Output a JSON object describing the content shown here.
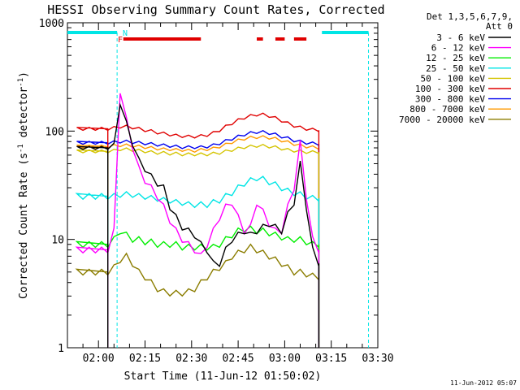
{
  "chart_data": {
    "type": "line",
    "title": "HESSI Observing Summary Count Rates, Corrected",
    "xlabel": "Start Time (11-Jun-12 01:50:02)",
    "ylabel": "Corrected Count Rate (s",
    "ylabel_sup1": "-1",
    "ylabel_mid": " detector",
    "ylabel_sup2": "-1",
    "ylabel_end": ")",
    "yscale": "log",
    "ylim": [
      1,
      1000
    ],
    "xlim": [
      "01:50:02",
      "03:30:00"
    ],
    "x_ticks": [
      "02:00",
      "02:15",
      "02:30",
      "02:45",
      "03:00",
      "03:15",
      "03:30"
    ],
    "x_tick_minutes": [
      10,
      25,
      40,
      55,
      70,
      85,
      100
    ],
    "y_ticks": [
      "1",
      "10",
      "100",
      "1000"
    ],
    "y_tick_values": [
      1,
      10,
      100,
      1000
    ],
    "legend_header": [
      "Det 1,3,5,6,7,9,",
      "Att 0"
    ],
    "legend_position": "right outside",
    "footer": "11-Jun-2012 05:07",
    "flags": [
      {
        "label": "N",
        "color": "#00e5e5",
        "time": "02:06"
      },
      {
        "label": "F",
        "color": "#e00000",
        "time": "02:06"
      }
    ],
    "attenuator_state_bars": {
      "color": "#00e5e5",
      "times": [
        [
          "01:50",
          "02:06"
        ],
        [
          "03:12",
          "03:27"
        ]
      ]
    },
    "flare_flag_bars": {
      "color": "#e00000",
      "times": [
        [
          "02:08",
          "02:33"
        ],
        [
          "02:51",
          "02:53"
        ],
        [
          "02:57",
          "03:00"
        ],
        [
          "03:03",
          "03:07"
        ]
      ]
    },
    "night_boundaries": [
      "02:06",
      "03:27"
    ],
    "data_gaps_at": [
      "02:03",
      "03:11"
    ],
    "x_minutes_from_0150": [
      3,
      5,
      7,
      9,
      11,
      13,
      15,
      17,
      19,
      21,
      23,
      25,
      27,
      29,
      31,
      33,
      35,
      37,
      39,
      41,
      43,
      45,
      47,
      49,
      51,
      53,
      55,
      57,
      59,
      61,
      63,
      65,
      67,
      69,
      71,
      73,
      75,
      77,
      79,
      81
    ],
    "series": [
      {
        "name": "3 - 6 keV",
        "color": "#000000",
        "values": [
          70,
          70,
          70,
          70,
          70,
          70,
          75,
          180,
          120,
          75,
          55,
          45,
          38,
          33,
          30,
          20,
          16,
          13,
          12,
          11,
          9,
          8,
          6,
          6,
          8,
          10,
          11,
          12,
          11,
          12,
          13,
          14,
          13,
          12,
          17,
          22,
          50,
          20,
          8,
          6
        ]
      },
      {
        "name": "6 - 12 keV",
        "color": "#ff00ff",
        "values": [
          8,
          8,
          8,
          8,
          8,
          8,
          12,
          230,
          130,
          70,
          45,
          35,
          30,
          25,
          20,
          15,
          12,
          10,
          9,
          8,
          7,
          9,
          12,
          16,
          20,
          22,
          16,
          12,
          13,
          22,
          18,
          14,
          12,
          12,
          20,
          30,
          80,
          25,
          10,
          8
        ]
      },
      {
        "name": "12 - 25 keV",
        "color": "#00ee00",
        "values": [
          9,
          9,
          9,
          9,
          9,
          9,
          10,
          12,
          11,
          10,
          10,
          9.5,
          9.5,
          9,
          9,
          9,
          9,
          8.5,
          8.5,
          8.5,
          8.5,
          8.5,
          8.5,
          9,
          10,
          11,
          12,
          12.5,
          12.5,
          12,
          12,
          11.5,
          11,
          10.5,
          10,
          10,
          10,
          9.5,
          9,
          9
        ]
      },
      {
        "name": "25 - 50 keV",
        "color": "#00e5e5",
        "values": [
          25,
          25,
          25,
          25,
          25,
          25,
          25,
          26,
          26,
          26,
          25,
          25,
          24,
          24,
          23,
          23,
          22,
          22,
          21,
          21,
          21,
          21,
          22,
          23,
          25,
          27,
          30,
          33,
          35,
          37,
          36,
          34,
          32,
          30,
          28,
          27,
          26,
          25,
          24,
          24
        ]
      },
      {
        "name": "50 - 100 keV",
        "color": "#d4c400",
        "values": [
          65,
          65,
          65,
          65,
          65,
          65,
          66,
          68,
          68,
          67,
          66,
          65,
          64,
          63,
          63,
          62,
          62,
          61,
          61,
          61,
          61,
          61,
          62,
          63,
          65,
          67,
          69,
          71,
          72,
          73,
          73,
          72,
          71,
          69,
          67,
          66,
          65,
          64,
          64,
          64
        ]
      },
      {
        "name": "100 - 300 keV",
        "color": "#e00000",
        "values": [
          105,
          105,
          105,
          105,
          105,
          105,
          107,
          110,
          110,
          108,
          105,
          102,
          100,
          97,
          95,
          93,
          91,
          90,
          89,
          89,
          90,
          92,
          96,
          102,
          110,
          118,
          126,
          133,
          138,
          142,
          142,
          138,
          132,
          125,
          118,
          112,
          108,
          105,
          103,
          102
        ]
      },
      {
        "name": "300 - 800 keV",
        "color": "#0000ee",
        "values": [
          78,
          78,
          78,
          78,
          78,
          78,
          79,
          80,
          80,
          79,
          78,
          77,
          76,
          75,
          74,
          73,
          72,
          71,
          71,
          71,
          71,
          72,
          74,
          77,
          81,
          85,
          89,
          93,
          96,
          98,
          98,
          96,
          93,
          89,
          86,
          82,
          80,
          78,
          77,
          76
        ]
      },
      {
        "name": "800 - 7000 keV",
        "color": "#ff9900",
        "values": [
          72,
          72,
          72,
          72,
          72,
          72,
          73,
          74,
          74,
          73,
          72,
          71,
          70,
          69,
          68,
          68,
          67,
          67,
          66,
          66,
          67,
          68,
          69,
          72,
          75,
          79,
          82,
          85,
          87,
          88,
          88,
          87,
          85,
          82,
          79,
          76,
          74,
          72,
          71,
          70
        ]
      },
      {
        "name": "7000 - 20000 keV",
        "color": "#8b7d00",
        "values": [
          5,
          5,
          5,
          5,
          5,
          5,
          5.5,
          6.5,
          7,
          6,
          5,
          4.5,
          4,
          3.5,
          3.3,
          3.2,
          3.2,
          3.2,
          3.3,
          3.5,
          4,
          4.5,
          5,
          5.5,
          6,
          7,
          7.5,
          8,
          8.5,
          8,
          7.5,
          7,
          6.5,
          6,
          5.5,
          5,
          5,
          4.8,
          4.6,
          4.5
        ]
      }
    ]
  }
}
